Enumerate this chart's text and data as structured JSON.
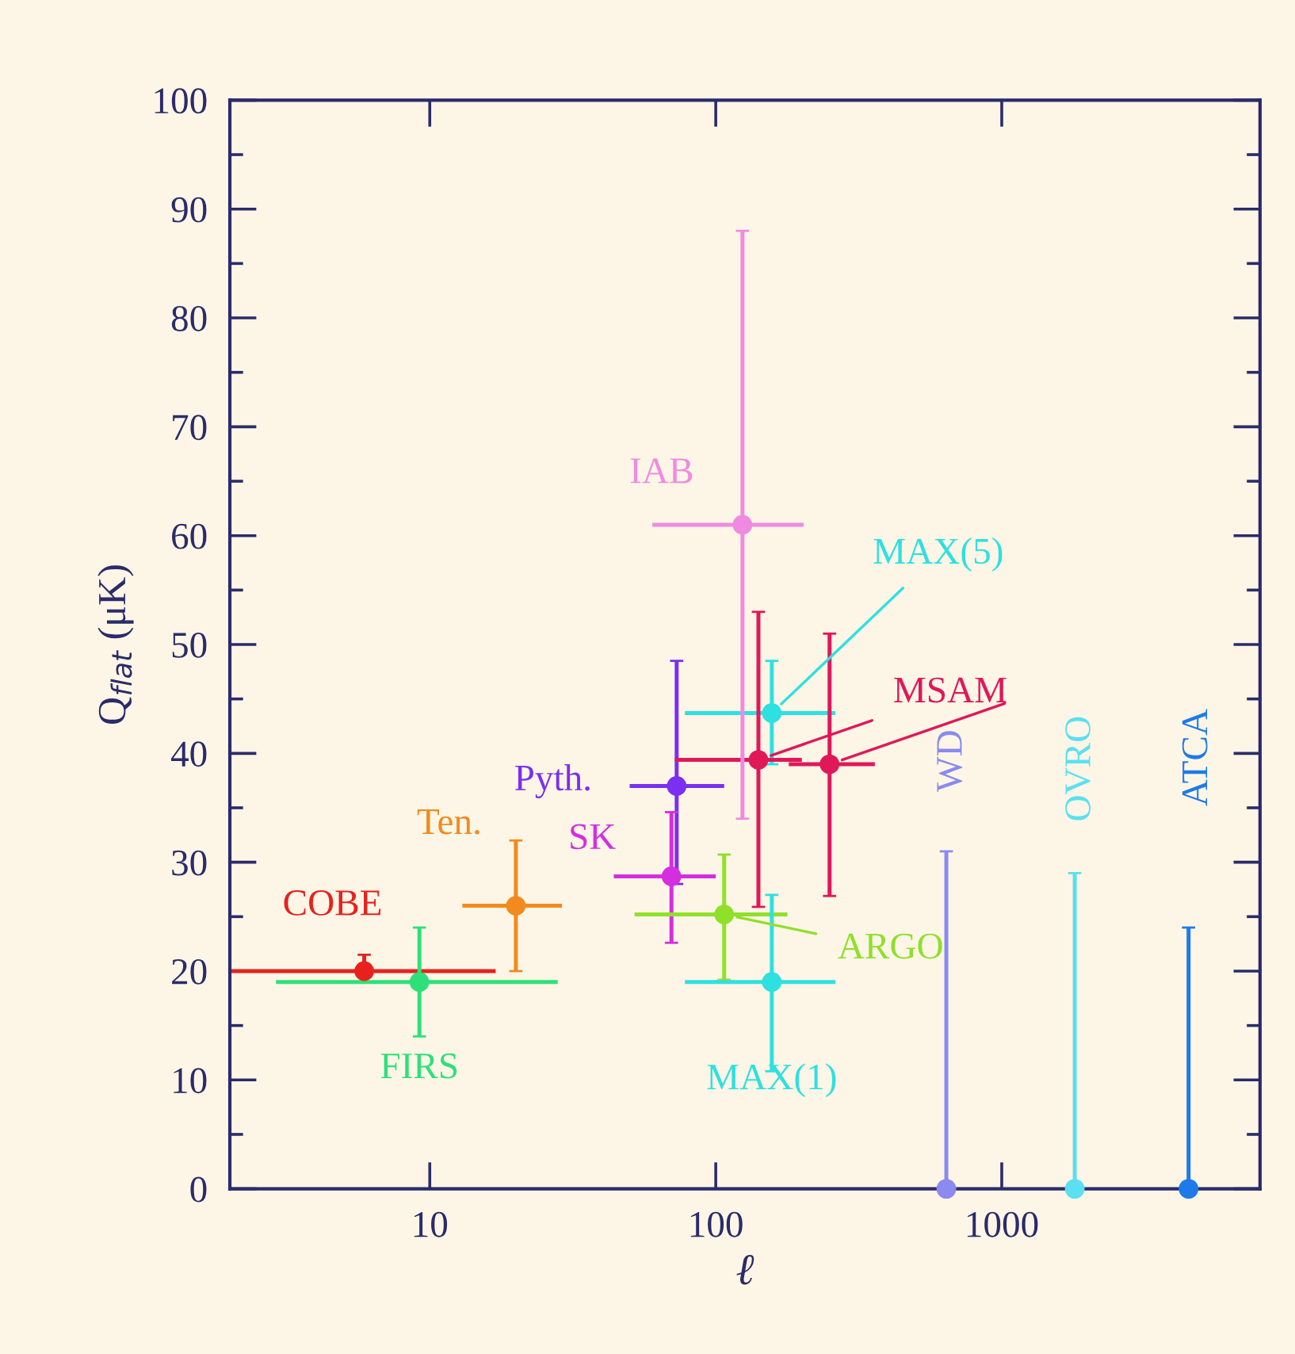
{
  "chart_data": {
    "type": "scatter",
    "xlabel": "ℓ",
    "ylabel": "Q$_{flat}$ (μK)",
    "log": "x",
    "marker": "circle",
    "grid": false,
    "xlim": [
      2,
      8000
    ],
    "xticks": [
      10,
      100,
      1000
    ],
    "ylim": [
      0,
      100
    ],
    "yticks": [
      0,
      10,
      20,
      30,
      40,
      50,
      60,
      70,
      80,
      90,
      100
    ],
    "series": [
      {
        "name": "COBE",
        "color": "#e8211f",
        "x": [
          5.9
        ],
        "values": [
          20
        ],
        "errors": [
          [
            19,
            21.5
          ]
        ],
        "xerrors": [
          [
            2,
            17
          ]
        ]
      },
      {
        "name": "FIRS",
        "color": "#2ee07a",
        "x": [
          9.2
        ],
        "values": [
          19
        ],
        "errors": [
          [
            14,
            24
          ]
        ],
        "xerrors": [
          [
            2.9,
            28
          ]
        ]
      },
      {
        "name": "Ten.",
        "color": "#f28a1e",
        "x": [
          20
        ],
        "values": [
          26
        ],
        "errors": [
          [
            20,
            32
          ]
        ],
        "xerrors": [
          [
            13,
            29
          ]
        ]
      },
      {
        "name": "Pyth.",
        "color": "#7b2ff0",
        "x": [
          73
        ],
        "values": [
          37
        ],
        "errors": [
          [
            28,
            48.5
          ]
        ],
        "xerrors": [
          [
            50,
            107
          ]
        ]
      },
      {
        "name": "SK",
        "color": "#d42ee0",
        "x": [
          70
        ],
        "values": [
          28.7
        ],
        "errors": [
          [
            22.6,
            34.6
          ]
        ],
        "xerrors": [
          [
            44,
            100
          ]
        ]
      },
      {
        "name": "ARGO",
        "color": "#8fe02a",
        "x": [
          107
        ],
        "values": [
          25.2
        ],
        "errors": [
          [
            19.2,
            30.7
          ]
        ],
        "xerrors": [
          [
            52,
            178
          ]
        ]
      },
      {
        "name": "MAX(1)",
        "color": "#2ee0e0",
        "x": [
          157
        ],
        "values": [
          19
        ],
        "errors": [
          [
            10.8,
            27
          ]
        ],
        "xerrors": [
          [
            78,
            262
          ]
        ]
      },
      {
        "name": "MAX(5)",
        "color": "#2ee0e0",
        "x": [
          157
        ],
        "values": [
          43.7
        ],
        "errors": [
          [
            39,
            48.5
          ]
        ],
        "xerrors": [
          [
            78,
            262
          ]
        ]
      },
      {
        "name": "MSAM",
        "color": "#e0185a",
        "x": [
          141,
          250
        ],
        "values": [
          39.4,
          39
        ],
        "errors": [
          [
            25.9,
            53
          ],
          [
            26.9,
            51
          ]
        ],
        "xerrors": [
          [
            72,
            200
          ],
          [
            180,
            360
          ]
        ]
      },
      {
        "name": "IAB",
        "color": "#f08ae0",
        "x": [
          124
        ],
        "values": [
          61
        ],
        "errors": [
          [
            34,
            88
          ]
        ],
        "xerrors": [
          [
            60,
            203
          ]
        ]
      },
      {
        "name": "WD",
        "color": "#8a8af0",
        "x": [
          640
        ],
        "values": [
          0
        ],
        "errors": [
          [
            0,
            31
          ]
        ]
      },
      {
        "name": "OVRO",
        "color": "#5ae0f0",
        "x": [
          1800
        ],
        "values": [
          0
        ],
        "errors": [
          [
            0,
            29
          ]
        ]
      },
      {
        "name": "ATCA",
        "color": "#1e7ae8",
        "x": [
          4500
        ],
        "values": [
          0
        ],
        "errors": [
          [
            0,
            24
          ]
        ]
      }
    ]
  }
}
